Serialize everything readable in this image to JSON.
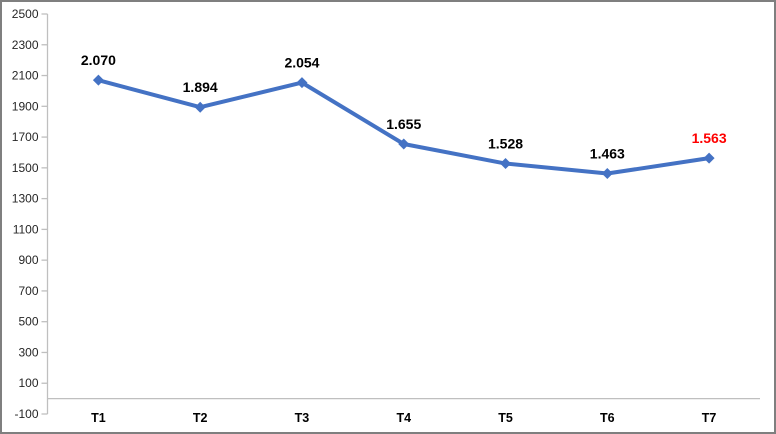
{
  "chart_data": {
    "type": "line",
    "title": "",
    "xlabel": "",
    "ylabel": "",
    "categories": [
      "T1",
      "T2",
      "T3",
      "T4",
      "T5",
      "T6",
      "T7"
    ],
    "series": [
      {
        "name": "values",
        "values": [
          2070,
          1894,
          2054,
          1655,
          1528,
          1463,
          1563
        ],
        "point_labels": [
          "2.070",
          "1.894",
          "2.054",
          "1.655",
          "1.528",
          "1.463",
          "1.563"
        ]
      }
    ],
    "highlight_index": 6,
    "ylim": [
      -100,
      2500
    ],
    "ytick_step": 200,
    "ytick_labels": [
      "2500",
      "2300",
      "2100",
      "1900",
      "1700",
      "1500",
      "1300",
      "1100",
      "900",
      "700",
      "500",
      "300",
      "100",
      "-100"
    ],
    "grid": false,
    "legend_position": "none",
    "marker": "diamond",
    "colors": {
      "line": "#4472C4",
      "marker": "#4472C4",
      "point_label": "#000000",
      "highlight_point_label": "#FF0000",
      "axis_line": "#BFBFBF",
      "tick_label": "#262626",
      "category_label": "#000000",
      "frame_border": "#7F7F7F",
      "background": "#FFFFFF"
    }
  }
}
